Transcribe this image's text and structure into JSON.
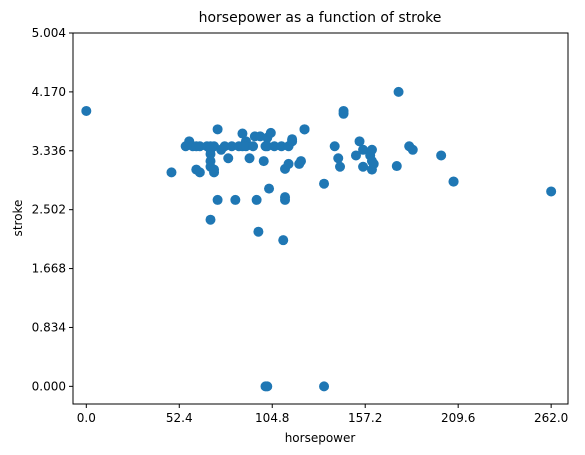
{
  "chart_data": {
    "type": "scatter",
    "title": "horsepower as a function of stroke",
    "xlabel": "horsepower",
    "ylabel": "stroke",
    "xlim": [
      -7.5,
      271.5
    ],
    "ylim": [
      -0.25,
      5.004
    ],
    "x_ticks": [
      "0.0",
      "52.4",
      "104.8",
      "157.2",
      "209.6",
      "262.0"
    ],
    "y_ticks": [
      "0.000",
      "0.834",
      "1.668",
      "2.502",
      "3.336",
      "4.170",
      "5.004"
    ],
    "grid": false,
    "point_color": "#1f77b4",
    "points": [
      [
        0,
        3.9
      ],
      [
        48,
        3.03
      ],
      [
        56,
        3.4
      ],
      [
        58,
        3.47
      ],
      [
        60,
        3.4
      ],
      [
        62,
        3.4
      ],
      [
        64,
        3.4
      ],
      [
        62,
        3.07
      ],
      [
        64,
        3.03
      ],
      [
        68,
        3.4
      ],
      [
        70,
        3.4
      ],
      [
        70,
        3.29
      ],
      [
        70,
        3.19
      ],
      [
        70,
        3.11
      ],
      [
        70,
        3.35
      ],
      [
        72,
        3.4
      ],
      [
        72,
        3.03
      ],
      [
        72,
        3.07
      ],
      [
        70,
        2.36
      ],
      [
        74,
        2.64
      ],
      [
        74,
        3.64
      ],
      [
        76,
        3.35
      ],
      [
        78,
        3.4
      ],
      [
        80,
        3.23
      ],
      [
        82,
        3.4
      ],
      [
        84,
        2.64
      ],
      [
        86,
        3.4
      ],
      [
        88,
        3.4
      ],
      [
        88,
        3.58
      ],
      [
        90,
        3.47
      ],
      [
        90,
        3.4
      ],
      [
        92,
        3.23
      ],
      [
        94,
        3.4
      ],
      [
        95,
        3.54
      ],
      [
        96,
        2.64
      ],
      [
        97,
        2.19
      ],
      [
        98,
        3.54
      ],
      [
        100,
        3.19
      ],
      [
        101,
        3.4
      ],
      [
        102,
        3.52
      ],
      [
        102,
        3.4
      ],
      [
        103,
        2.8
      ],
      [
        104,
        3.59
      ],
      [
        106,
        3.4
      ],
      [
        110,
        3.4
      ],
      [
        111,
        2.07
      ],
      [
        112,
        3.08
      ],
      [
        112,
        2.68
      ],
      [
        112,
        2.64
      ],
      [
        114,
        3.4
      ],
      [
        114,
        3.15
      ],
      [
        116,
        3.5
      ],
      [
        116,
        3.47
      ],
      [
        120,
        3.15
      ],
      [
        121,
        3.19
      ],
      [
        123,
        3.64
      ],
      [
        123,
        3.64
      ],
      [
        101,
        0
      ],
      [
        102,
        0
      ],
      [
        134,
        0
      ],
      [
        134,
        2.87
      ],
      [
        140,
        3.4
      ],
      [
        142,
        3.23
      ],
      [
        143,
        3.11
      ],
      [
        145,
        3.9
      ],
      [
        145,
        3.86
      ],
      [
        152,
        3.27
      ],
      [
        154,
        3.47
      ],
      [
        156,
        3.11
      ],
      [
        156,
        3.35
      ],
      [
        160,
        3.27
      ],
      [
        161,
        3.19
      ],
      [
        161,
        3.35
      ],
      [
        161,
        3.07
      ],
      [
        162,
        3.15
      ],
      [
        175,
        3.12
      ],
      [
        176,
        4.17
      ],
      [
        182,
        3.4
      ],
      [
        184,
        3.35
      ],
      [
        200,
        3.27
      ],
      [
        207,
        2.9
      ],
      [
        207,
        2.9
      ],
      [
        262,
        2.76
      ]
    ]
  }
}
